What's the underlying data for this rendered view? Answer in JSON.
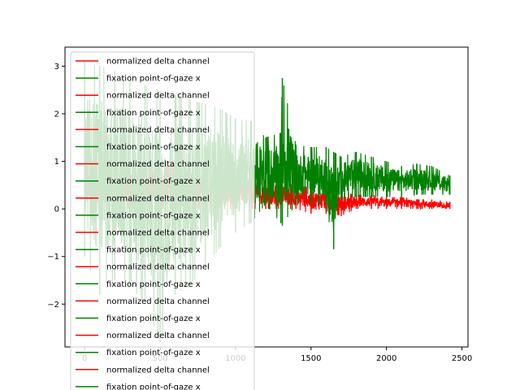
{
  "chart_data": {
    "type": "line",
    "title": "",
    "xlabel": "",
    "ylabel": "",
    "xlim": [
      -130,
      2540
    ],
    "ylim": [
      -2.9,
      3.4
    ],
    "x_ticks": [
      0,
      500,
      1000,
      1500,
      2000,
      2500
    ],
    "y_ticks": [
      -2,
      -1,
      0,
      1,
      2,
      3
    ],
    "x_tick_labels": [
      "0",
      "500",
      "1000",
      "1500",
      "2000",
      "2500"
    ],
    "y_tick_labels": [
      "−2",
      "−1",
      "0",
      "1",
      "2",
      "3"
    ],
    "grid": false,
    "legend_position": "upper-left",
    "series": [
      {
        "name": "normalized delta channel",
        "color": "#ff0000",
        "x": [
          0,
          100,
          200,
          300,
          400,
          500,
          600,
          700,
          800,
          900,
          1000,
          1100,
          1200,
          1300,
          1400,
          1500,
          1600,
          1650,
          1700,
          1800,
          1900,
          2000,
          2100,
          2200,
          2300,
          2420
        ],
        "values": [
          0.9,
          0.9,
          0.9,
          0.9,
          0.9,
          0.9,
          0.9,
          0.9,
          0.9,
          0.85,
          0.85,
          0.8,
          0.6,
          0.55,
          0.5,
          0.45,
          0.45,
          0.4,
          0.35,
          0.3,
          0.3,
          0.25,
          0.25,
          0.2,
          0.2,
          0.15
        ],
        "min": [
          0,
          0,
          0,
          0,
          0,
          0,
          0,
          0,
          0,
          0,
          0,
          0,
          0,
          0,
          0,
          -0.1,
          -0.1,
          -0.1,
          -0.15,
          0,
          0,
          0,
          0,
          0,
          0,
          0
        ]
      },
      {
        "name": "fixation point-of-gaze x",
        "color": "#008000",
        "x": [
          0,
          100,
          200,
          300,
          400,
          500,
          600,
          700,
          800,
          900,
          1000,
          1100,
          1200,
          1300,
          1310,
          1400,
          1500,
          1600,
          1650,
          1700,
          1800,
          1900,
          2000,
          2100,
          2200,
          2300,
          2420
        ],
        "values": [
          3.1,
          3.0,
          2.9,
          2.7,
          2.6,
          2.5,
          2.4,
          2.3,
          2.2,
          2.1,
          1.9,
          1.85,
          1.5,
          1.6,
          2.75,
          1.35,
          1.3,
          1.3,
          1.2,
          1.1,
          1.2,
          1.1,
          1.0,
          0.9,
          0.95,
          0.9,
          0.7
        ],
        "min": [
          -1.0,
          -1.8,
          -1.5,
          -1.6,
          -2.0,
          -2.8,
          -1.8,
          -1.6,
          -1.2,
          -0.8,
          -0.5,
          -0.3,
          0.1,
          -0.3,
          -0.35,
          0.1,
          0.1,
          0.1,
          -0.85,
          0.2,
          0.25,
          0.25,
          0.25,
          0.25,
          0.3,
          0.3,
          0.3
        ]
      }
    ],
    "legend_entries": [
      "normalized delta channel",
      "fixation point-of-gaze x",
      "normalized delta channel",
      "fixation point-of-gaze x",
      "normalized delta channel",
      "fixation point-of-gaze x",
      "normalized delta channel",
      "fixation point-of-gaze x",
      "normalized delta channel",
      "fixation point-of-gaze x",
      "normalized delta channel",
      "fixation point-of-gaze x",
      "normalized delta channel",
      "fixation point-of-gaze x",
      "normalized delta channel",
      "fixation point-of-gaze x",
      "normalized delta channel",
      "fixation point-of-gaze x",
      "normalized delta channel",
      "fixation point-of-gaze x"
    ],
    "legend_colors": [
      "#ff0000",
      "#008000"
    ]
  }
}
